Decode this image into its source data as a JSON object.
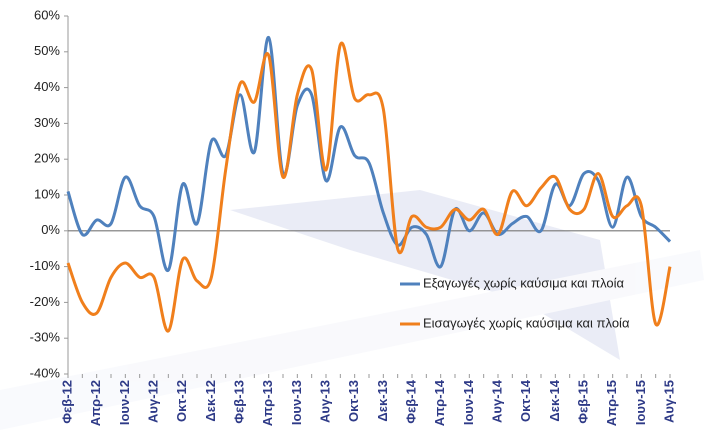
{
  "chart_data": {
    "type": "line",
    "categories": [
      "Φεβ-12",
      null,
      "Απρ-12",
      null,
      "Ιουν-12",
      null,
      "Αυγ-12",
      null,
      "Οκτ-12",
      null,
      "Δεκ-12",
      null,
      "Φεβ-13",
      null,
      "Απρ-13",
      null,
      "Ιουν-13",
      null,
      "Αυγ-13",
      null,
      "Οκτ-13",
      null,
      "Δεκ-13",
      null,
      "Φεβ-14",
      null,
      "Απρ-14",
      null,
      "Ιουν-14",
      null,
      "Αυγ-14",
      null,
      "Οκτ-14",
      null,
      "Δεκ-14",
      null,
      "Φεβ-15",
      null,
      "Απρ-15",
      null,
      "Ιουν-15",
      null,
      "Αυγ-15"
    ],
    "series": [
      {
        "name": "Εξαγωγές χωρίς καύσιμα και πλοία",
        "color": "#4f81bd",
        "values": [
          11,
          -1,
          3,
          2,
          15,
          7,
          4,
          -11,
          13,
          2,
          25,
          21,
          38,
          22,
          54,
          16,
          35,
          38,
          14,
          29,
          21,
          19,
          5,
          -4,
          1,
          -1,
          -10,
          6,
          0,
          5,
          -1,
          2,
          4,
          0,
          13,
          7,
          16,
          14,
          1,
          15,
          4,
          1,
          -3
        ]
      },
      {
        "name": "Εισαγωγές χωρίς καύσιμα και πλοία",
        "color": "#f07f1c",
        "values": [
          -9,
          -20,
          -23,
          -13,
          -9,
          -13,
          -13,
          -28,
          -8,
          -14,
          -13,
          17,
          41,
          36,
          49,
          15,
          38,
          45,
          17,
          52,
          37,
          38,
          34,
          -5,
          4,
          1,
          1,
          6,
          3,
          6,
          -1,
          11,
          7,
          12,
          15,
          6,
          6,
          16,
          4,
          7,
          7,
          -26,
          -10
        ]
      }
    ],
    "ylim": [
      -40,
      60
    ],
    "yticks": [
      {
        "value": -40,
        "label": "-40%"
      },
      {
        "value": -30,
        "label": "-30%"
      },
      {
        "value": -20,
        "label": "-20%"
      },
      {
        "value": -10,
        "label": "-10%"
      },
      {
        "value": 0,
        "label": "0%"
      },
      {
        "value": 10,
        "label": "10%"
      },
      {
        "value": 20,
        "label": "20%"
      },
      {
        "value": 30,
        "label": "30%"
      },
      {
        "value": 40,
        "label": "40%"
      },
      {
        "value": 50,
        "label": "50%"
      },
      {
        "value": 60,
        "label": "60%"
      }
    ],
    "grid": false
  }
}
